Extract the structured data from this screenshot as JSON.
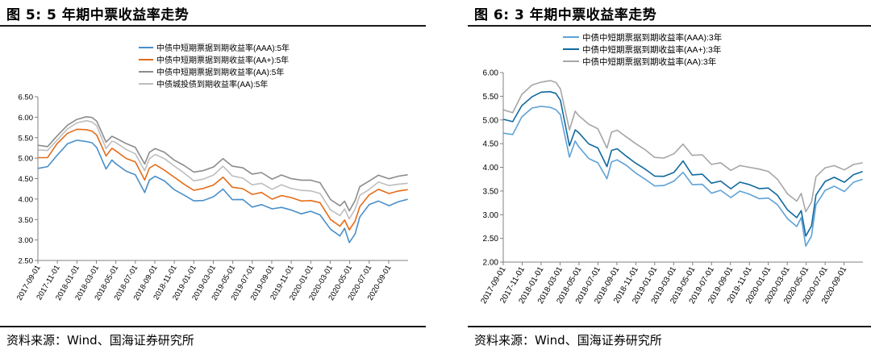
{
  "charts": [
    {
      "figure_title": "图 5:  5 年期中票收益率走势",
      "source": "资料来源：Wind、国海证券研究所",
      "series_colors": [
        "#4A8FC8",
        "#E46C18",
        "#8C8C8C",
        "#BEBEBE"
      ]
    },
    {
      "figure_title": "图 6:  3 年期中票收益率走势",
      "source": "资料来源：Wind、国海证券研究所",
      "series_colors": [
        "#5EA2D6",
        "#11699E",
        "#A6A6A6"
      ]
    }
  ],
  "chart_data": [
    {
      "type": "line",
      "title": "5年期中票收益率走势",
      "ylim": [
        2.5,
        6.5
      ],
      "yticks": [
        "6.50",
        "6.00",
        "5.50",
        "5.00",
        "4.50",
        "4.00",
        "3.50",
        "3.00",
        "2.50"
      ],
      "xlim": [
        2017.667,
        2020.833
      ],
      "xticks": [
        "2017-09-01",
        "2017-11-01",
        "2018-01-01",
        "2018-03-01",
        "2018-05-01",
        "2018-07-01",
        "2018-09-01",
        "2018-11-01",
        "2019-01-01",
        "2019-03-01",
        "2019-05-01",
        "2019-07-01",
        "2019-09-01",
        "2019-11-01",
        "2020-01-01",
        "2020-03-01",
        "2020-05-01",
        "2020-07-01",
        "2020-09-01"
      ],
      "x": [
        2017.67,
        2017.75,
        2017.83,
        2017.92,
        2018.0,
        2018.08,
        2018.13,
        2018.17,
        2018.25,
        2018.3,
        2018.33,
        2018.42,
        2018.5,
        2018.58,
        2018.62,
        2018.67,
        2018.75,
        2018.83,
        2018.92,
        2019.0,
        2019.08,
        2019.17,
        2019.25,
        2019.33,
        2019.42,
        2019.5,
        2019.58,
        2019.67,
        2019.75,
        2019.83,
        2019.92,
        2020.0,
        2020.08,
        2020.17,
        2020.25,
        2020.29,
        2020.33,
        2020.38,
        2020.42,
        2020.5,
        2020.58,
        2020.67,
        2020.75,
        2020.83
      ],
      "series": [
        {
          "name": "中债中短期票据到期收益率(AAA):5年",
          "values": [
            4.75,
            4.78,
            5.05,
            5.35,
            5.45,
            5.42,
            5.38,
            5.25,
            4.72,
            4.95,
            4.88,
            4.7,
            4.6,
            4.15,
            4.45,
            4.55,
            4.45,
            4.25,
            4.1,
            3.95,
            3.95,
            4.05,
            4.25,
            4.0,
            4.0,
            3.8,
            3.85,
            3.75,
            3.8,
            3.75,
            3.65,
            3.7,
            3.6,
            3.25,
            3.1,
            3.3,
            2.95,
            3.15,
            3.55,
            3.85,
            3.95,
            3.85,
            3.95,
            4.0
          ]
        },
        {
          "name": "中债中短期票据到期收益率(AA+):5年",
          "values": [
            5.0,
            5.0,
            5.35,
            5.62,
            5.72,
            5.7,
            5.65,
            5.55,
            5.05,
            5.25,
            5.2,
            5.0,
            4.9,
            4.45,
            4.75,
            4.85,
            4.72,
            4.55,
            4.35,
            4.2,
            4.25,
            4.35,
            4.55,
            4.3,
            4.25,
            4.1,
            4.15,
            4.0,
            4.1,
            4.05,
            3.95,
            3.95,
            3.9,
            3.5,
            3.35,
            3.5,
            3.25,
            3.45,
            3.8,
            4.1,
            4.25,
            4.15,
            4.2,
            4.22
          ]
        },
        {
          "name": "中债中短期票据到期收益率(AA):5年",
          "values": [
            5.3,
            5.28,
            5.55,
            5.82,
            5.95,
            6.0,
            5.98,
            5.9,
            5.4,
            5.55,
            5.5,
            5.35,
            5.25,
            4.85,
            5.15,
            5.25,
            5.15,
            4.95,
            4.8,
            4.65,
            4.7,
            4.8,
            5.0,
            4.8,
            4.75,
            4.6,
            4.65,
            4.5,
            4.6,
            4.5,
            4.45,
            4.45,
            4.4,
            4.0,
            3.85,
            3.95,
            3.7,
            3.95,
            4.3,
            4.45,
            4.6,
            4.5,
            4.55,
            4.58
          ]
        },
        {
          "name": "中债城投债到期收益率(AA):5年",
          "values": [
            5.2,
            5.2,
            5.45,
            5.72,
            5.85,
            5.9,
            5.88,
            5.8,
            5.25,
            5.42,
            5.38,
            5.2,
            5.1,
            4.7,
            5.0,
            5.1,
            4.98,
            4.8,
            4.62,
            4.45,
            4.5,
            4.6,
            4.8,
            4.55,
            4.5,
            4.35,
            4.4,
            4.25,
            4.35,
            4.25,
            4.2,
            4.2,
            4.15,
            3.75,
            3.6,
            3.75,
            3.5,
            3.75,
            4.1,
            4.25,
            4.42,
            4.32,
            4.35,
            4.38
          ]
        }
      ]
    },
    {
      "type": "line",
      "title": "3年期中票收益率走势",
      "ylim": [
        2.0,
        6.0
      ],
      "yticks": [
        "6.00",
        "5.50",
        "5.00",
        "4.50",
        "4.00",
        "3.50",
        "3.00",
        "2.50",
        "2.00"
      ],
      "xlim": [
        2017.667,
        2020.833
      ],
      "xticks": [
        "2017-09-01",
        "2017-11-01",
        "2018-01-01",
        "2018-03-01",
        "2018-05-01",
        "2018-07-01",
        "2018-09-01",
        "2018-11-01",
        "2019-01-01",
        "2019-03-01",
        "2019-05-01",
        "2019-07-01",
        "2019-09-01",
        "2019-11-01",
        "2020-01-01",
        "2020-03-01",
        "2020-05-01",
        "2020-07-01",
        "2020-09-01"
      ],
      "x": [
        2017.67,
        2017.75,
        2017.83,
        2017.92,
        2018.0,
        2018.08,
        2018.13,
        2018.17,
        2018.25,
        2018.3,
        2018.33,
        2018.42,
        2018.5,
        2018.58,
        2018.62,
        2018.67,
        2018.75,
        2018.83,
        2018.92,
        2019.0,
        2019.08,
        2019.17,
        2019.25,
        2019.33,
        2019.42,
        2019.5,
        2019.58,
        2019.67,
        2019.75,
        2019.83,
        2019.92,
        2020.0,
        2020.08,
        2020.17,
        2020.25,
        2020.29,
        2020.33,
        2020.38,
        2020.42,
        2020.5,
        2020.58,
        2020.67,
        2020.75,
        2020.83
      ],
      "series": [
        {
          "name": "中债中短期票据到期收益率(AAA):3年",
          "values": [
            4.72,
            4.68,
            5.05,
            5.25,
            5.3,
            5.28,
            5.22,
            5.1,
            4.2,
            4.55,
            4.45,
            4.2,
            4.1,
            3.75,
            4.1,
            4.15,
            4.05,
            3.9,
            3.75,
            3.6,
            3.6,
            3.7,
            3.9,
            3.65,
            3.65,
            3.45,
            3.5,
            3.35,
            3.5,
            3.45,
            3.35,
            3.35,
            3.2,
            2.9,
            2.75,
            2.95,
            2.35,
            2.55,
            3.2,
            3.5,
            3.6,
            3.5,
            3.7,
            3.75
          ]
        },
        {
          "name": "中债中短期票据到期收益率(AA+):3年",
          "values": [
            5.0,
            4.95,
            5.3,
            5.5,
            5.6,
            5.6,
            5.55,
            5.4,
            4.45,
            4.8,
            4.75,
            4.5,
            4.4,
            4.0,
            4.35,
            4.4,
            4.25,
            4.1,
            3.95,
            3.8,
            3.8,
            3.9,
            4.15,
            3.85,
            3.85,
            3.65,
            3.7,
            3.55,
            3.7,
            3.65,
            3.55,
            3.55,
            3.4,
            3.1,
            2.95,
            3.1,
            2.55,
            2.75,
            3.4,
            3.7,
            3.8,
            3.7,
            3.85,
            3.9
          ]
        },
        {
          "name": "中债中短期票据到期收益率(AA):3年",
          "values": [
            5.2,
            5.15,
            5.55,
            5.75,
            5.8,
            5.82,
            5.78,
            5.65,
            4.8,
            5.2,
            5.1,
            4.9,
            4.8,
            4.4,
            4.75,
            4.8,
            4.65,
            4.5,
            4.35,
            4.2,
            4.2,
            4.3,
            4.5,
            4.25,
            4.25,
            4.05,
            4.1,
            3.95,
            4.05,
            4.0,
            3.95,
            3.9,
            3.75,
            3.45,
            3.3,
            3.45,
            3.05,
            3.25,
            3.8,
            4.0,
            4.05,
            3.95,
            4.05,
            4.08
          ]
        }
      ]
    }
  ]
}
